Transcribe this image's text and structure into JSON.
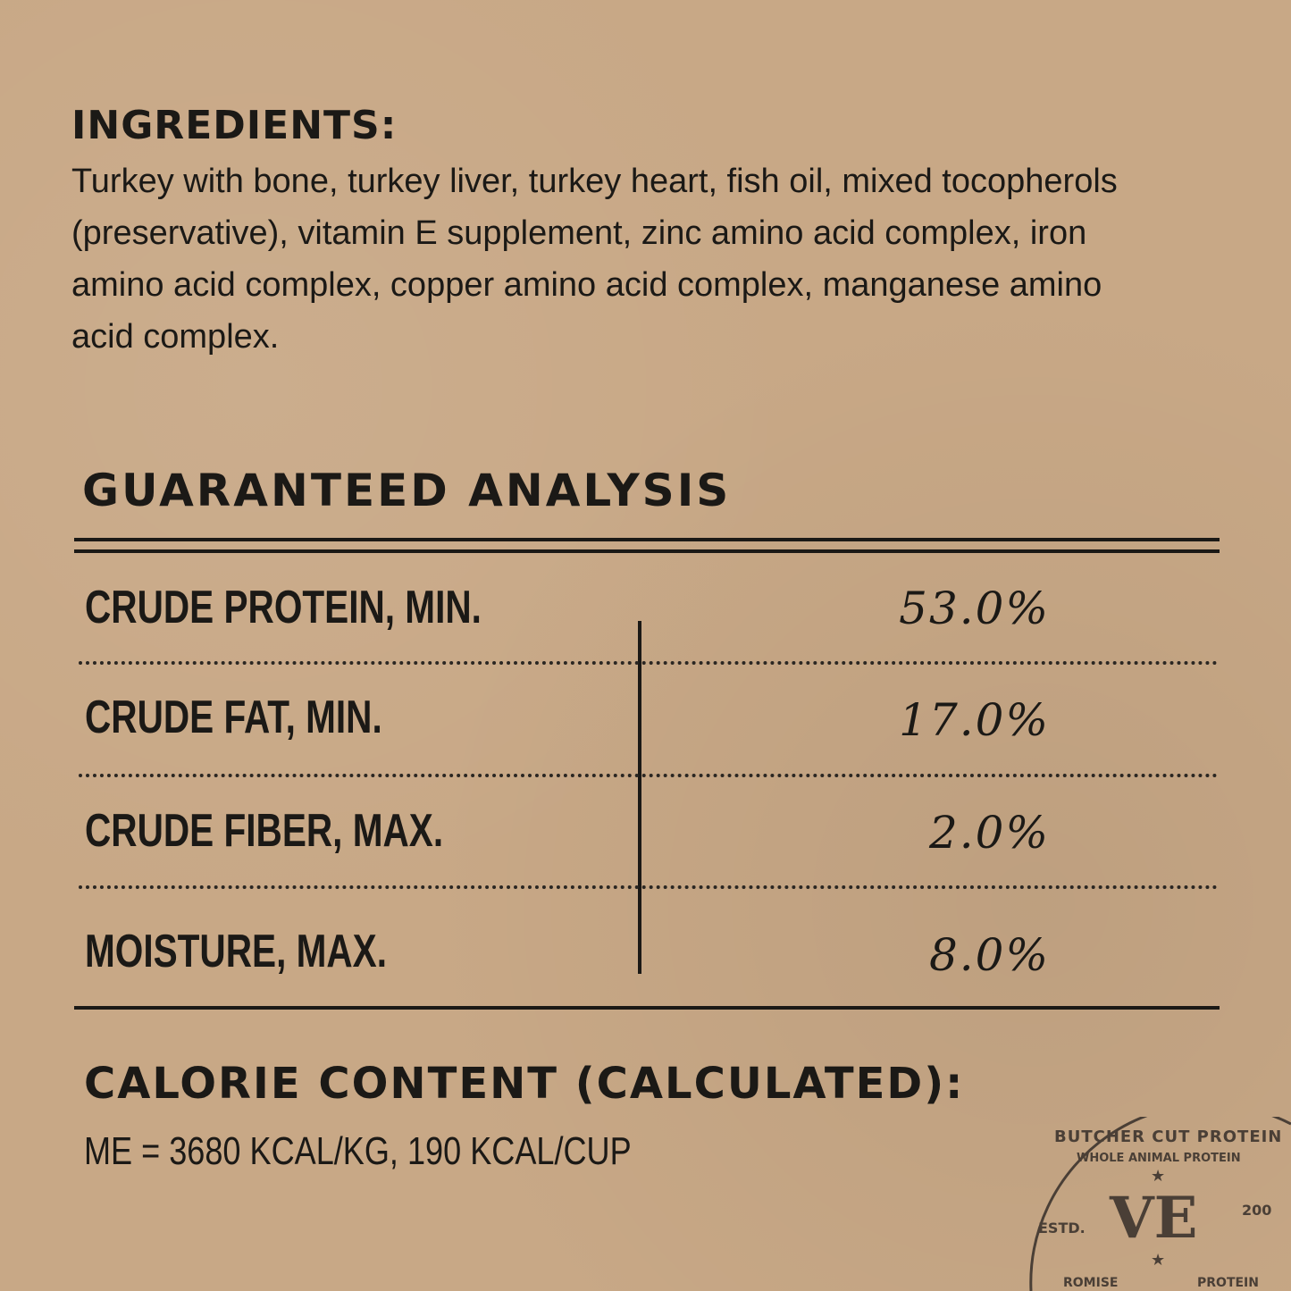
{
  "ingredients": {
    "heading": "INGREDIENTS:",
    "text": "Turkey with bone, turkey liver, turkey heart, fish oil, mixed tocopherols (preservative), vitamin E supplement, zinc amino acid complex, iron amino acid complex, copper amino acid complex, manganese amino acid complex."
  },
  "analysis": {
    "title": "GUARANTEED ANALYSIS",
    "rows": [
      {
        "label": "CRUDE PROTEIN, MIN.",
        "value": "53.0%"
      },
      {
        "label": "CRUDE FAT, MIN.",
        "value": "17.0%"
      },
      {
        "label": "CRUDE FIBER, MAX.",
        "value": "2.0%"
      },
      {
        "label": "MOISTURE, MAX.",
        "value": "8.0%"
      }
    ]
  },
  "calories": {
    "title": "CALORIE CONTENT (CALCULATED):",
    "value": "ME = 3680 KCAL/KG, 190 KCAL/CUP"
  },
  "stamp": {
    "outer_text": "BUTCHER CUT PROTEIN",
    "inner_text": "WHOLE ANIMAL PROTEIN",
    "logo": "VE",
    "estd": "ESTD.",
    "year_fragment": "200",
    "promise_fragment": "ROMISE",
    "protein_fragment": "PROTEIN"
  },
  "colors": {
    "background": "#c8a886",
    "ink": "#1b1916",
    "stamp": "#4a3f36"
  }
}
